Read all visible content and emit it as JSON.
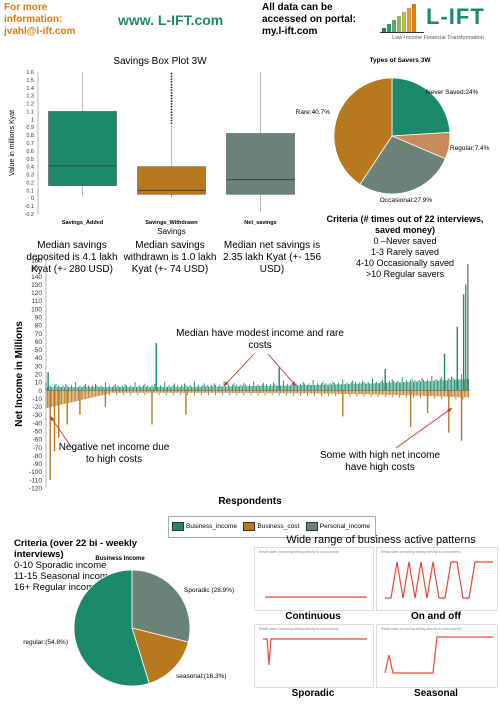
{
  "header": {
    "contact_line1": "For more",
    "contact_line2": "information:",
    "contact_line3": "jvahl@l-ift.com",
    "website": "www. L-IFT.com",
    "portal_line1": "All data can be",
    "portal_line2": "accessed on portal:",
    "portal_line3": "my.l-ift.com",
    "logo_name": "L-IFT",
    "logo_tagline": "Low-Income Financial Transformation"
  },
  "box_plot": {
    "title": "Savings Box Plot 3W",
    "ylabel": "Value in millions Kyat",
    "xlabel": "Savings",
    "y_ticks": [
      "1.6",
      "1.5",
      "1.4",
      "1.3",
      "1.2",
      "1.1",
      "1",
      "0.9",
      "0.8",
      "0.7",
      "0.6",
      "0.5",
      "0.4",
      "0.3",
      "0.2",
      "0.1",
      "0",
      "-0.1",
      "-0.2"
    ]
  },
  "savers_pie": {
    "title": "Types of Savers 3W"
  },
  "captions": {
    "added": "Median savings deposited is 4.1 lakh Kyat (+- 280 USD)",
    "withdrawn": "Median savings withdrawn is 1.0 lakh Kyat (+- 74 USD)",
    "net": "Median net savings is 2.35 lakh Kyat (+- 156 USD)"
  },
  "criteria_savings": {
    "title": "Criteria (# times out of 22 interviews, saved money)",
    "lines": [
      "0 –Never saved",
      "1-3 Rarely saved",
      "4-10 Occasionally saved",
      ">10 Regular savers"
    ]
  },
  "income_chart": {
    "ylabel": "Net Income in Millions",
    "xlabel": "Respondents",
    "y_ticks": [
      "160",
      "150",
      "140",
      "130",
      "120",
      "110",
      "100",
      "90",
      "80",
      "70",
      "60",
      "50",
      "40",
      "30",
      "20",
      "10",
      "0",
      "-10",
      "-20",
      "-30",
      "-40",
      "-50",
      "-60",
      "-70",
      "-80",
      "-90",
      "-100",
      "-110",
      "-120"
    ],
    "annotation_mid": "Median have modest income and rare costs",
    "annotation_left": "Negative net income due to high costs",
    "annotation_right": "Some with high net income have high costs",
    "legend": [
      "Business_income",
      "Business_cost",
      "Personal_income"
    ]
  },
  "criteria_business": {
    "title": "Criteria (over 22 bi - weekly interviews)",
    "lines": [
      "0-10 Sporadic income",
      "11-15 Seasonal income",
      "16+ Regular income"
    ]
  },
  "business_pie": {
    "title": "Business Income"
  },
  "patterns": {
    "title": "Wide range of business active patterns",
    "mini_title": "Retail sales (meaning selling directly to consumers)",
    "labels": [
      "Continuous",
      "On and off",
      "Sporadic",
      "Seasonal"
    ]
  },
  "colors": {
    "green": "#1a8a6a",
    "orange": "#b8781e",
    "gray": "#6b8278",
    "rust": "#c98a5a",
    "red": "#e8483e",
    "header_orange": "#e07a10"
  },
  "chart_data": [
    {
      "type": "box",
      "title": "Savings Box Plot 3W",
      "xlabel": "Savings",
      "ylabel": "Value in millions Kyat",
      "ylim": [
        -0.2,
        1.6
      ],
      "categories": [
        "Savings_Added",
        "Savings_Withdrawn",
        "Net_savings"
      ],
      "boxes": [
        {
          "name": "Savings_Added",
          "whisker_low": 0.02,
          "q1": 0.16,
          "median": 0.41,
          "q3": 1.1,
          "whisker_high": 1.6
        },
        {
          "name": "Savings_Withdrawn",
          "whisker_low": 0.0,
          "q1": 0.05,
          "median": 0.1,
          "q3": 0.4,
          "whisker_high": 0.92,
          "outliers_above": 1.6
        },
        {
          "name": "Net_savings",
          "whisker_low": -0.18,
          "q1": 0.05,
          "median": 0.235,
          "q3": 0.82,
          "whisker_high": 1.6
        }
      ]
    },
    {
      "type": "pie",
      "title": "Types of Savers 3W",
      "slices": [
        {
          "label": "Never Saved",
          "value": 24.0,
          "color": "#1a8a6a"
        },
        {
          "label": "Regular",
          "value": 7.4,
          "color": "#c98a5a"
        },
        {
          "label": "Occasional",
          "value": 27.9,
          "color": "#6b8278"
        },
        {
          "label": "Rare",
          "value": 40.7,
          "color": "#b8781e"
        }
      ],
      "slice_labels": [
        "Never Saved:24%",
        "Regular:7.4%",
        "Occasional:27.9%",
        "Rare:40.7%"
      ]
    },
    {
      "type": "bar",
      "xlabel": "Respondents",
      "ylabel": "Net Income in Millions",
      "ylim": [
        -120,
        160
      ],
      "series": [
        {
          "name": "Business_income",
          "color": "#1a8a6a"
        },
        {
          "name": "Business_cost",
          "color": "#b8781e"
        },
        {
          "name": "Personal_income",
          "color": "#6b8278"
        }
      ],
      "spikes": [
        {
          "x": 0.005,
          "series": "Business_income",
          "value": 22
        },
        {
          "x": 0.01,
          "series": "Business_cost",
          "value": -110
        },
        {
          "x": 0.02,
          "series": "Business_cost",
          "value": -75
        },
        {
          "x": 0.03,
          "series": "Business_cost",
          "value": -58
        },
        {
          "x": 0.05,
          "series": "Business_cost",
          "value": -42
        },
        {
          "x": 0.08,
          "series": "Business_cost",
          "value": -30
        },
        {
          "x": 0.14,
          "series": "Business_cost",
          "value": -20
        },
        {
          "x": 0.26,
          "series": "Business_income",
          "value": 58
        },
        {
          "x": 0.25,
          "series": "Business_cost",
          "value": -42
        },
        {
          "x": 0.33,
          "series": "Business_cost",
          "value": -30
        },
        {
          "x": 0.55,
          "series": "Business_income",
          "value": 28
        },
        {
          "x": 0.7,
          "series": "Business_cost",
          "value": -32
        },
        {
          "x": 0.8,
          "series": "Business_income",
          "value": 26
        },
        {
          "x": 0.86,
          "series": "Business_cost",
          "value": -45
        },
        {
          "x": 0.9,
          "series": "Business_cost",
          "value": -28
        },
        {
          "x": 0.94,
          "series": "Business_income",
          "value": 45
        },
        {
          "x": 0.95,
          "series": "Business_cost",
          "value": -52
        },
        {
          "x": 0.97,
          "series": "Business_income",
          "value": 78
        },
        {
          "x": 0.98,
          "series": "Business_cost",
          "value": -62
        },
        {
          "x": 0.985,
          "series": "Business_income",
          "value": 118
        },
        {
          "x": 0.99,
          "series": "Personal_income",
          "value": 130
        },
        {
          "x": 0.995,
          "series": "Personal_income",
          "value": 155
        }
      ]
    },
    {
      "type": "pie",
      "title": "Business Income",
      "slices": [
        {
          "label": "Sporadic",
          "value": 28.9,
          "color": "#6b8278"
        },
        {
          "label": "seasonal",
          "value": 16.3,
          "color": "#b8781e"
        },
        {
          "label": "regular",
          "value": 54.8,
          "color": "#1a8a6a"
        }
      ],
      "slice_labels": [
        "Sporadic (28.9%)",
        "seasonal:(16.3%)",
        "regular:(54.8%)"
      ]
    }
  ]
}
